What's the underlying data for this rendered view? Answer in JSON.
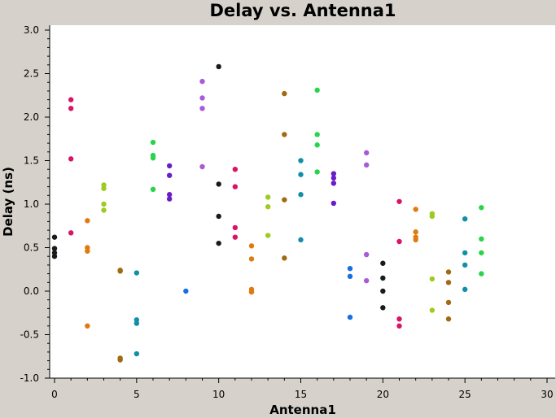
{
  "chart_data": {
    "type": "scatter",
    "title": "Delay vs. Antenna1",
    "xlabel": "Antenna1",
    "ylabel": "Delay (ns)",
    "xlim": [
      0,
      30
    ],
    "ylim": [
      -1.0,
      3.0
    ],
    "x_ticks": [
      0,
      5,
      10,
      15,
      20,
      25,
      30
    ],
    "y_ticks": [
      -1.0,
      -0.5,
      0.0,
      0.5,
      1.0,
      1.5,
      2.0,
      2.5,
      3.0
    ],
    "x_tick_labels": [
      "0",
      "5",
      "10",
      "15",
      "20",
      "25",
      "30"
    ],
    "y_tick_labels": [
      "-1.0",
      "-0.5",
      "0.0",
      "0.5",
      "1.0",
      "1.5",
      "2.0",
      "2.5",
      "3.0"
    ],
    "grid": false,
    "groups": [
      {
        "x": 0,
        "color": "#1a1a1a",
        "y": [
          0.62,
          0.49,
          0.44,
          0.4
        ]
      },
      {
        "x": 1,
        "color": "#d81466",
        "y": [
          2.2,
          2.1,
          1.52,
          0.67
        ]
      },
      {
        "x": 2,
        "color": "#e07a10",
        "y": [
          0.81,
          0.5,
          0.46,
          -0.4
        ]
      },
      {
        "x": 3,
        "color": "#9ccc1e",
        "y": [
          1.22,
          1.18,
          1.0,
          0.93
        ]
      },
      {
        "x": 4,
        "color": "#a06a10",
        "y": [
          0.24,
          0.23,
          -0.77,
          -0.79
        ]
      },
      {
        "x": 5,
        "color": "#1090a8",
        "y": [
          0.21,
          -0.33,
          -0.37,
          -0.72
        ]
      },
      {
        "x": 6,
        "color": "#2ad44a",
        "y": [
          1.71,
          1.56,
          1.53,
          1.17
        ]
      },
      {
        "x": 7,
        "color": "#6a1cc8",
        "y": [
          1.44,
          1.33,
          1.11,
          1.06
        ]
      },
      {
        "x": 8,
        "color": "#1870e0",
        "y": [
          0.0
        ]
      },
      {
        "x": 9,
        "color": "#a85ad8",
        "y": [
          2.41,
          2.22,
          2.1,
          1.43
        ]
      },
      {
        "x": 10,
        "color": "#1a1a1a",
        "y": [
          2.58,
          1.23,
          0.86,
          0.55
        ]
      },
      {
        "x": 11,
        "color": "#d81466",
        "y": [
          1.4,
          1.2,
          0.73,
          0.62
        ]
      },
      {
        "x": 12,
        "color": "#e07a10",
        "y": [
          0.52,
          0.37,
          0.02,
          -0.01
        ]
      },
      {
        "x": 13,
        "color": "#9ccc1e",
        "y": [
          1.08,
          0.97,
          0.64
        ]
      },
      {
        "x": 14,
        "color": "#a06a10",
        "y": [
          2.27,
          1.8,
          1.05,
          0.38
        ]
      },
      {
        "x": 15,
        "color": "#1090a8",
        "y": [
          1.5,
          1.34,
          1.11,
          0.59
        ]
      },
      {
        "x": 16,
        "color": "#2ad44a",
        "y": [
          2.31,
          1.8,
          1.68,
          1.37
        ]
      },
      {
        "x": 17,
        "color": "#6a1cc8",
        "y": [
          1.35,
          1.3,
          1.24,
          1.01
        ]
      },
      {
        "x": 18,
        "color": "#1870e0",
        "y": [
          0.26,
          0.17,
          -0.3
        ]
      },
      {
        "x": 19,
        "color": "#a85ad8",
        "y": [
          1.59,
          1.45,
          0.42,
          0.12
        ]
      },
      {
        "x": 20,
        "color": "#1a1a1a",
        "y": [
          0.32,
          0.15,
          0.0,
          -0.19
        ]
      },
      {
        "x": 21,
        "color": "#d81466",
        "y": [
          1.03,
          0.57,
          -0.32,
          -0.4
        ]
      },
      {
        "x": 22,
        "color": "#e07a10",
        "y": [
          0.94,
          0.68,
          0.62,
          0.59
        ]
      },
      {
        "x": 23,
        "color": "#9ccc1e",
        "y": [
          0.89,
          0.86,
          0.14,
          -0.22
        ]
      },
      {
        "x": 24,
        "color": "#a06a10",
        "y": [
          0.22,
          0.1,
          -0.13,
          -0.32
        ]
      },
      {
        "x": 25,
        "color": "#1090a8",
        "y": [
          0.83,
          0.44,
          0.3,
          0.02
        ]
      },
      {
        "x": 26,
        "color": "#2ad44a",
        "y": [
          0.96,
          0.6,
          0.44,
          0.2
        ]
      }
    ]
  }
}
